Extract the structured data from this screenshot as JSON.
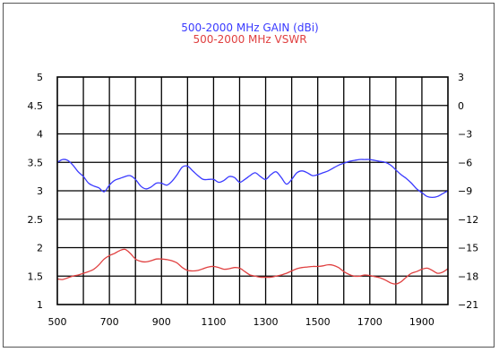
{
  "chart_data": {
    "type": "line",
    "titles": [
      {
        "text": "500-2000  MHz  GAIN  (dBi)",
        "color": "#3a3aff"
      },
      {
        "text": "500-2000  MHz  VSWR",
        "color": "#e04040"
      }
    ],
    "x_ticks": [
      500,
      700,
      900,
      1100,
      1300,
      1500,
      1700,
      1900
    ],
    "xlim": [
      500,
      2000
    ],
    "x_grid_step": 100,
    "y_left": {
      "lim": [
        1,
        5
      ],
      "ticks": [
        1,
        1.5,
        2,
        2.5,
        3,
        3.5,
        4,
        4.5,
        5
      ],
      "tick_labels": [
        "1",
        "1.5",
        "2",
        "2.5",
        "3",
        "3.5",
        "4",
        "4.5",
        "5"
      ]
    },
    "y_right": {
      "lim": [
        -21,
        3
      ],
      "ticks": [
        -21,
        -18,
        -15,
        -12,
        -9,
        -6,
        -3,
        0,
        3
      ],
      "tick_labels": [
        "−21",
        "−18",
        "−15",
        "−12",
        "−9",
        "−6",
        "−3",
        "0",
        "3"
      ]
    },
    "grid": true,
    "series": [
      {
        "axis": "right",
        "color": "#3a3aff",
        "x": [
          500,
          520,
          540,
          560,
          580,
          600,
          620,
          640,
          660,
          680,
          700,
          720,
          740,
          760,
          780,
          800,
          820,
          840,
          860,
          880,
          900,
          920,
          940,
          960,
          980,
          1000,
          1020,
          1040,
          1060,
          1080,
          1100,
          1120,
          1140,
          1160,
          1180,
          1200,
          1220,
          1240,
          1260,
          1280,
          1300,
          1320,
          1340,
          1360,
          1380,
          1400,
          1420,
          1440,
          1460,
          1480,
          1500,
          1520,
          1540,
          1560,
          1580,
          1600,
          1620,
          1640,
          1660,
          1680,
          1700,
          1720,
          1740,
          1760,
          1780,
          1800,
          1820,
          1840,
          1860,
          1880,
          1900,
          1920,
          1940,
          1960,
          1980,
          2000
        ],
        "y": [
          -6.0,
          -5.7,
          -5.8,
          -6.3,
          -7.0,
          -7.5,
          -8.2,
          -8.5,
          -8.7,
          -9.1,
          -8.4,
          -7.9,
          -7.7,
          -7.5,
          -7.4,
          -7.8,
          -8.5,
          -8.8,
          -8.6,
          -8.2,
          -8.2,
          -8.4,
          -8.0,
          -7.3,
          -6.5,
          -6.4,
          -6.9,
          -7.4,
          -7.8,
          -7.8,
          -7.8,
          -8.1,
          -7.9,
          -7.5,
          -7.6,
          -8.1,
          -7.8,
          -7.4,
          -7.1,
          -7.5,
          -7.8,
          -7.3,
          -7.0,
          -7.6,
          -8.3,
          -7.8,
          -7.1,
          -6.9,
          -7.1,
          -7.4,
          -7.3,
          -7.1,
          -6.9,
          -6.6,
          -6.3,
          -6.1,
          -5.9,
          -5.8,
          -5.7,
          -5.7,
          -5.7,
          -5.8,
          -5.9,
          -6.0,
          -6.3,
          -6.8,
          -7.3,
          -7.7,
          -8.2,
          -8.8,
          -9.2,
          -9.6,
          -9.7,
          -9.6,
          -9.3,
          -9.0
        ]
      },
      {
        "axis": "left",
        "color": "#e04040",
        "x": [
          500,
          520,
          540,
          560,
          580,
          600,
          620,
          640,
          660,
          680,
          700,
          720,
          740,
          760,
          780,
          800,
          820,
          840,
          860,
          880,
          900,
          920,
          940,
          960,
          980,
          1000,
          1020,
          1040,
          1060,
          1080,
          1100,
          1120,
          1140,
          1160,
          1180,
          1200,
          1220,
          1240,
          1260,
          1280,
          1300,
          1320,
          1340,
          1360,
          1380,
          1400,
          1420,
          1440,
          1460,
          1480,
          1500,
          1520,
          1540,
          1560,
          1580,
          1600,
          1620,
          1640,
          1660,
          1680,
          1700,
          1720,
          1740,
          1760,
          1780,
          1800,
          1820,
          1840,
          1860,
          1880,
          1900,
          1920,
          1940,
          1960,
          1980,
          2000
        ],
        "y": [
          1.45,
          1.44,
          1.47,
          1.5,
          1.52,
          1.55,
          1.58,
          1.62,
          1.7,
          1.8,
          1.86,
          1.9,
          1.95,
          1.97,
          1.9,
          1.8,
          1.76,
          1.75,
          1.77,
          1.8,
          1.8,
          1.79,
          1.77,
          1.73,
          1.65,
          1.6,
          1.59,
          1.6,
          1.63,
          1.66,
          1.67,
          1.65,
          1.62,
          1.63,
          1.65,
          1.64,
          1.58,
          1.52,
          1.5,
          1.48,
          1.48,
          1.48,
          1.5,
          1.52,
          1.55,
          1.59,
          1.63,
          1.65,
          1.66,
          1.67,
          1.67,
          1.68,
          1.7,
          1.69,
          1.65,
          1.58,
          1.53,
          1.5,
          1.5,
          1.52,
          1.51,
          1.49,
          1.47,
          1.43,
          1.38,
          1.36,
          1.4,
          1.48,
          1.55,
          1.58,
          1.62,
          1.64,
          1.6,
          1.55,
          1.57,
          1.63
        ]
      }
    ]
  }
}
